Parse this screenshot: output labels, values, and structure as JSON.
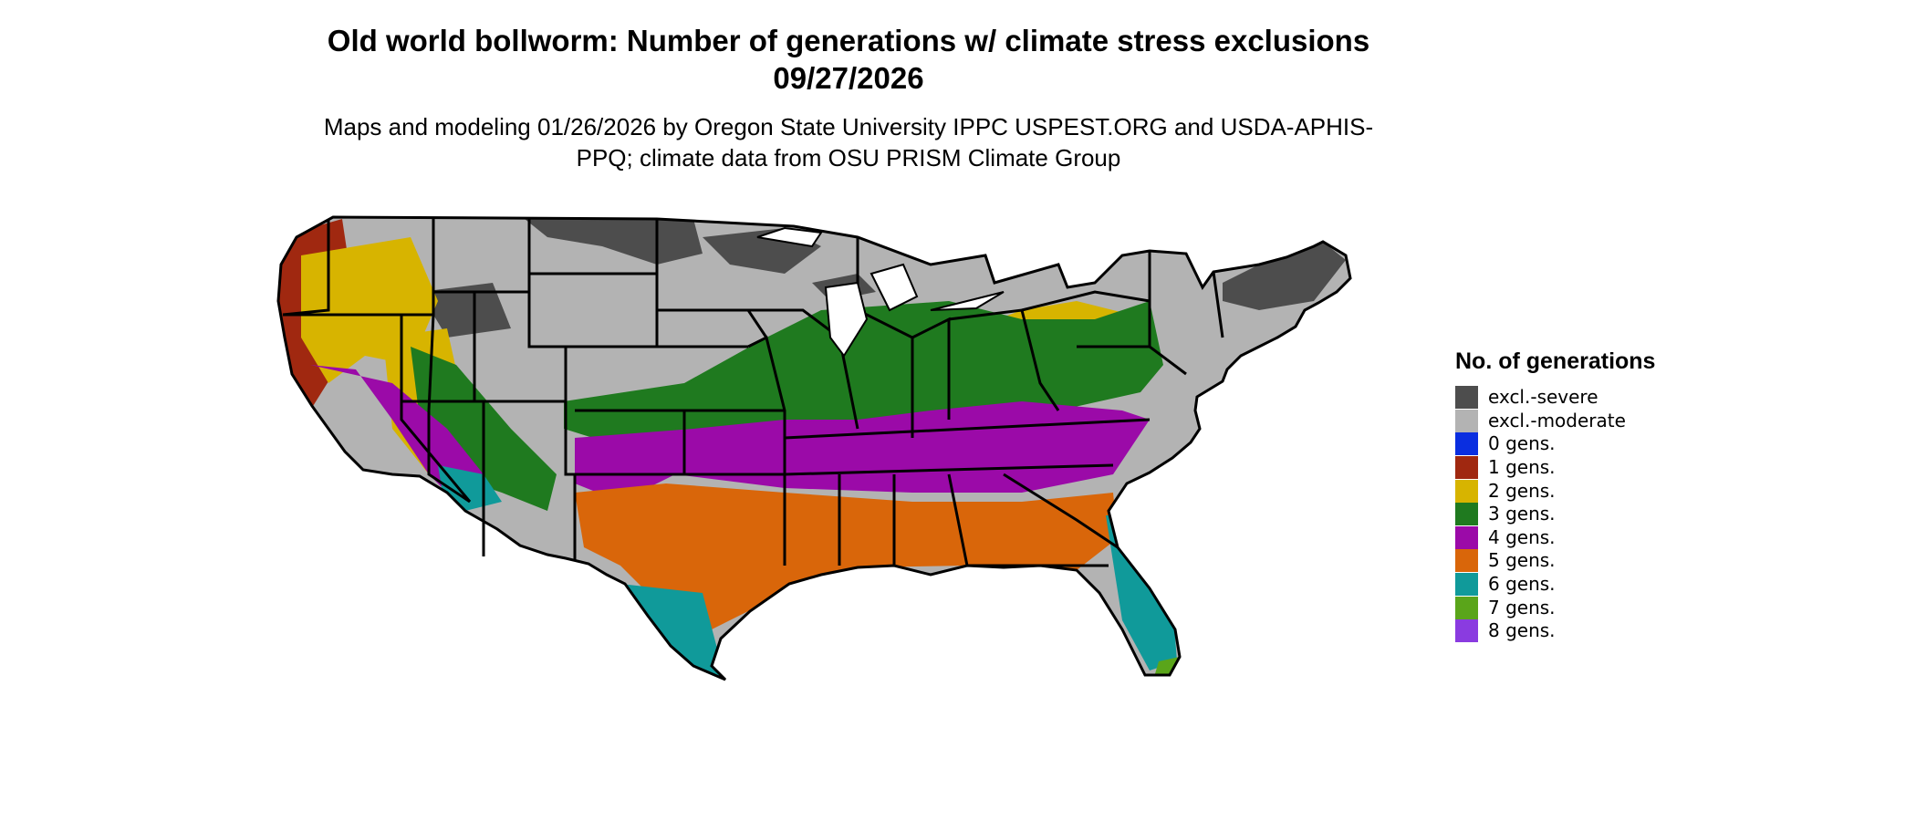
{
  "title": "Old world bollworm: Number of generations w/ climate stress exclusions 09/27/2026",
  "subtitle": "Maps and modeling 01/26/2026 by Oregon State University IPPC USPEST.ORG and USDA-APHIS-PPQ; climate data from OSU PRISM Climate Group",
  "legend": {
    "title": "No. of generations",
    "items": [
      {
        "label": "excl.-severe",
        "color": "#4d4d4d"
      },
      {
        "label": "excl.-moderate",
        "color": "#b3b3b3"
      },
      {
        "label": "0 gens.",
        "color": "#0a2ee0"
      },
      {
        "label": "1 gens.",
        "color": "#a02810"
      },
      {
        "label": "2 gens.",
        "color": "#d7b400"
      },
      {
        "label": "3 gens.",
        "color": "#1f7a1f"
      },
      {
        "label": "4 gens.",
        "color": "#9b0aa8"
      },
      {
        "label": "5 gens.",
        "color": "#d9660a"
      },
      {
        "label": "6 gens.",
        "color": "#109a9a"
      },
      {
        "label": "7 gens.",
        "color": "#5aa51a"
      },
      {
        "label": "8 gens.",
        "color": "#8a3be0"
      }
    ]
  }
}
